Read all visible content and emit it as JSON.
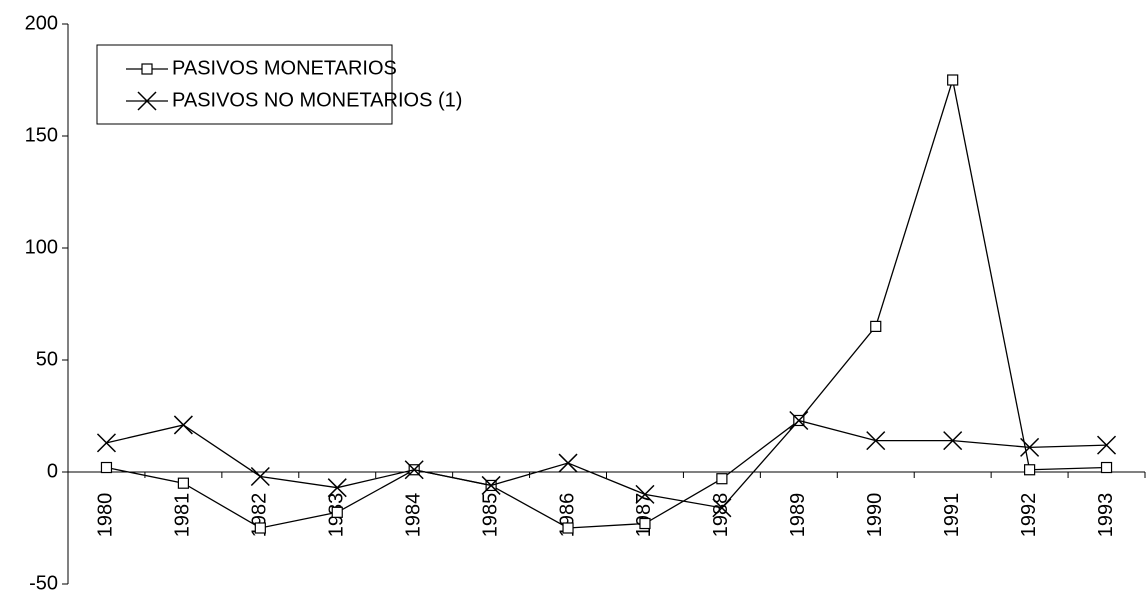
{
  "chart_data": {
    "type": "line",
    "categories": [
      "1980",
      "1981",
      "1982",
      "1983",
      "1984",
      "1985",
      "1986",
      "1987",
      "1988",
      "1989",
      "1990",
      "1991",
      "1992",
      "1993"
    ],
    "series": [
      {
        "name": "PASIVOS MONETARIOS",
        "color": "#000000",
        "marker": "square",
        "values": [
          2,
          -5,
          -25,
          -18,
          1,
          -6,
          -25,
          -23,
          -3,
          23,
          65,
          175,
          1,
          2
        ]
      },
      {
        "name": "PASIVOS NO MONETARIOS (1)",
        "color": "#000000",
        "marker": "x",
        "values": [
          13,
          21,
          -2,
          -7,
          1,
          -6,
          4,
          -10,
          -16,
          23,
          14,
          14,
          11,
          12
        ]
      }
    ],
    "ylim": [
      -50,
      200
    ],
    "yticks": [
      -50,
      0,
      50,
      100,
      150,
      200
    ],
    "grid": false,
    "legend": "top-left"
  }
}
